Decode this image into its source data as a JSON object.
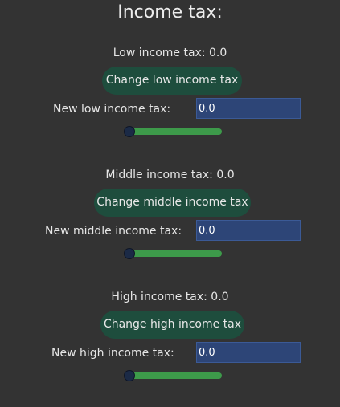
{
  "title": "Income tax:",
  "sections": [
    {
      "current_label": "Low income tax: 0.0",
      "button_label": "Change low income tax",
      "new_label": "New low income tax:",
      "input_value": "0.0",
      "slider_value": 0.0
    },
    {
      "current_label": "Middle income tax: 0.0",
      "button_label": "Change middle income tax",
      "new_label": "New middle income tax:",
      "input_value": "0.0",
      "slider_value": 0.0
    },
    {
      "current_label": "High income tax: 0.0",
      "button_label": "Change high income tax",
      "new_label": "New high income tax:",
      "input_value": "0.0",
      "slider_value": 0.0
    }
  ]
}
